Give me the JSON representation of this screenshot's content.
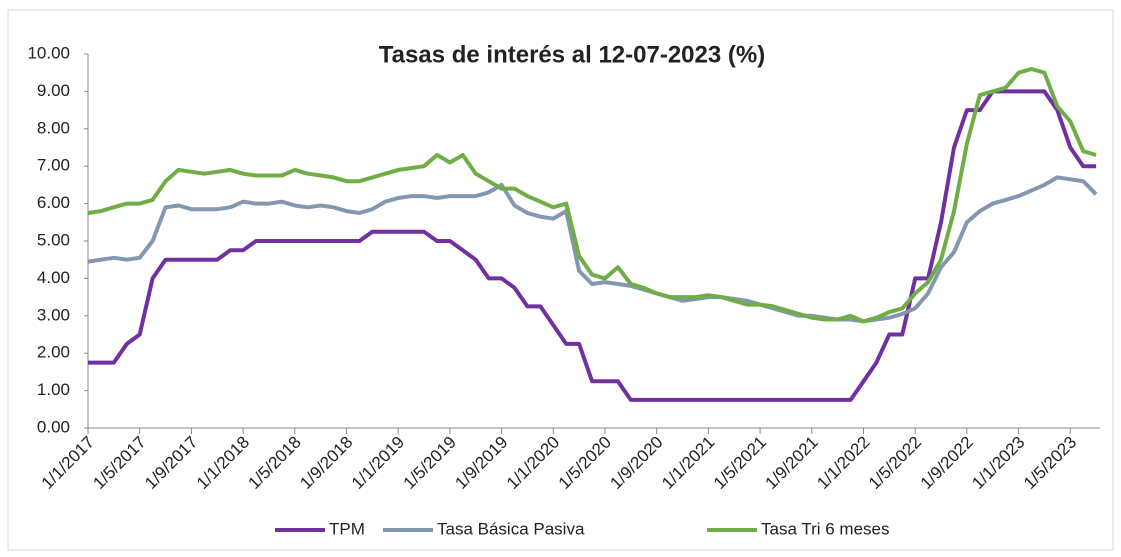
{
  "chart_data": {
    "type": "line",
    "title": "Tasas de interés al 12-07-2023 (%)",
    "x": [
      "1/1/2017",
      "1/2/2017",
      "1/3/2017",
      "1/4/2017",
      "1/5/2017",
      "1/6/2017",
      "1/7/2017",
      "1/8/2017",
      "1/9/2017",
      "1/10/2017",
      "1/11/2017",
      "1/12/2017",
      "1/1/2018",
      "1/2/2018",
      "1/3/2018",
      "1/4/2018",
      "1/5/2018",
      "1/6/2018",
      "1/7/2018",
      "1/8/2018",
      "1/9/2018",
      "1/10/2018",
      "1/11/2018",
      "1/12/2018",
      "1/1/2019",
      "1/2/2019",
      "1/3/2019",
      "1/4/2019",
      "1/5/2019",
      "1/6/2019",
      "1/7/2019",
      "1/8/2019",
      "1/9/2019",
      "1/10/2019",
      "1/11/2019",
      "1/12/2019",
      "1/1/2020",
      "1/2/2020",
      "1/3/2020",
      "1/4/2020",
      "1/5/2020",
      "1/6/2020",
      "1/7/2020",
      "1/8/2020",
      "1/9/2020",
      "1/10/2020",
      "1/11/2020",
      "1/12/2020",
      "1/1/2021",
      "1/2/2021",
      "1/3/2021",
      "1/4/2021",
      "1/5/2021",
      "1/6/2021",
      "1/7/2021",
      "1/8/2021",
      "1/9/2021",
      "1/10/2021",
      "1/11/2021",
      "1/12/2021",
      "1/1/2022",
      "1/2/2022",
      "1/3/2022",
      "1/4/2022",
      "1/5/2022",
      "1/6/2022",
      "1/7/2022",
      "1/8/2022",
      "1/9/2022",
      "1/10/2022",
      "1/11/2022",
      "1/12/2022",
      "1/1/2023",
      "1/2/2023",
      "1/3/2023",
      "1/4/2023",
      "1/5/2023",
      "1/6/2023",
      "1/7/2023"
    ],
    "xticks": [
      "1/1/2017",
      "1/5/2017",
      "1/9/2017",
      "1/1/2018",
      "1/5/2018",
      "1/9/2018",
      "1/1/2019",
      "1/5/2019",
      "1/9/2019",
      "1/1/2020",
      "1/5/2020",
      "1/9/2020",
      "1/1/2021",
      "1/5/2021",
      "1/9/2021",
      "1/1/2022",
      "1/5/2022",
      "1/9/2022",
      "1/1/2023",
      "1/5/2023"
    ],
    "series": [
      {
        "name": "TPM",
        "color": "#7030a0",
        "values": [
          1.75,
          1.75,
          1.75,
          2.25,
          2.5,
          4.0,
          4.5,
          4.5,
          4.5,
          4.5,
          4.5,
          4.75,
          4.75,
          5.0,
          5.0,
          5.0,
          5.0,
          5.0,
          5.0,
          5.0,
          5.0,
          5.0,
          5.25,
          5.25,
          5.25,
          5.25,
          5.25,
          5.0,
          5.0,
          4.75,
          4.5,
          4.0,
          4.0,
          3.75,
          3.25,
          3.25,
          2.75,
          2.25,
          2.25,
          1.25,
          1.25,
          1.25,
          0.75,
          0.75,
          0.75,
          0.75,
          0.75,
          0.75,
          0.75,
          0.75,
          0.75,
          0.75,
          0.75,
          0.75,
          0.75,
          0.75,
          0.75,
          0.75,
          0.75,
          0.75,
          1.25,
          1.75,
          2.5,
          2.5,
          4.0,
          4.0,
          5.5,
          7.5,
          8.5,
          8.5,
          9.0,
          9.0,
          9.0,
          9.0,
          9.0,
          8.5,
          7.5,
          7.0,
          7.0
        ]
      },
      {
        "name": "Tasa Básica Pasiva",
        "color": "#8497b0",
        "values": [
          4.45,
          4.5,
          4.55,
          4.5,
          4.55,
          5.0,
          5.9,
          5.95,
          5.85,
          5.85,
          5.85,
          5.9,
          6.05,
          6.0,
          6.0,
          6.05,
          5.95,
          5.9,
          5.95,
          5.9,
          5.8,
          5.75,
          5.85,
          6.05,
          6.15,
          6.2,
          6.2,
          6.15,
          6.2,
          6.2,
          6.2,
          6.3,
          6.5,
          5.95,
          5.75,
          5.65,
          5.6,
          5.8,
          4.2,
          3.85,
          3.9,
          3.85,
          3.8,
          3.7,
          3.6,
          3.5,
          3.4,
          3.45,
          3.5,
          3.5,
          3.45,
          3.4,
          3.3,
          3.2,
          3.1,
          3.0,
          3.0,
          2.95,
          2.9,
          2.9,
          2.85,
          2.9,
          2.95,
          3.05,
          3.2,
          3.6,
          4.3,
          4.7,
          5.5,
          5.8,
          6.0,
          6.1,
          6.2,
          6.35,
          6.5,
          6.7,
          6.65,
          6.6,
          6.25
        ]
      },
      {
        "name": "Tasa Tri 6 meses",
        "color": "#70ad47",
        "values": [
          5.75,
          5.8,
          5.9,
          6.0,
          6.0,
          6.1,
          6.6,
          6.9,
          6.85,
          6.8,
          6.85,
          6.9,
          6.8,
          6.75,
          6.75,
          6.75,
          6.9,
          6.8,
          6.75,
          6.7,
          6.6,
          6.6,
          6.7,
          6.8,
          6.9,
          6.95,
          7.0,
          7.3,
          7.1,
          7.3,
          6.8,
          6.6,
          6.4,
          6.4,
          6.2,
          6.05,
          5.9,
          6.0,
          4.6,
          4.1,
          4.0,
          4.3,
          3.85,
          3.75,
          3.6,
          3.5,
          3.5,
          3.5,
          3.55,
          3.5,
          3.4,
          3.3,
          3.3,
          3.25,
          3.15,
          3.05,
          2.95,
          2.9,
          2.9,
          3.0,
          2.85,
          2.95,
          3.1,
          3.2,
          3.6,
          3.9,
          4.5,
          5.8,
          7.6,
          8.9,
          9.0,
          9.1,
          9.5,
          9.6,
          9.5,
          8.6,
          8.2,
          7.4,
          7.3
        ]
      }
    ],
    "ylim": [
      0,
      10
    ],
    "yticks": [
      {
        "value": 0,
        "label": "0.00"
      },
      {
        "value": 1,
        "label": "1.00"
      },
      {
        "value": 2,
        "label": "2.00"
      },
      {
        "value": 3,
        "label": "3.00"
      },
      {
        "value": 4,
        "label": "4.00"
      },
      {
        "value": 5,
        "label": "5.00"
      },
      {
        "value": 6,
        "label": "6.00"
      },
      {
        "value": 7,
        "label": "7.00"
      },
      {
        "value": 8,
        "label": "8.00"
      },
      {
        "value": 9,
        "label": "9.00"
      },
      {
        "value": 10,
        "label": "10.00"
      }
    ],
    "legend": "bottom",
    "grid": false
  }
}
